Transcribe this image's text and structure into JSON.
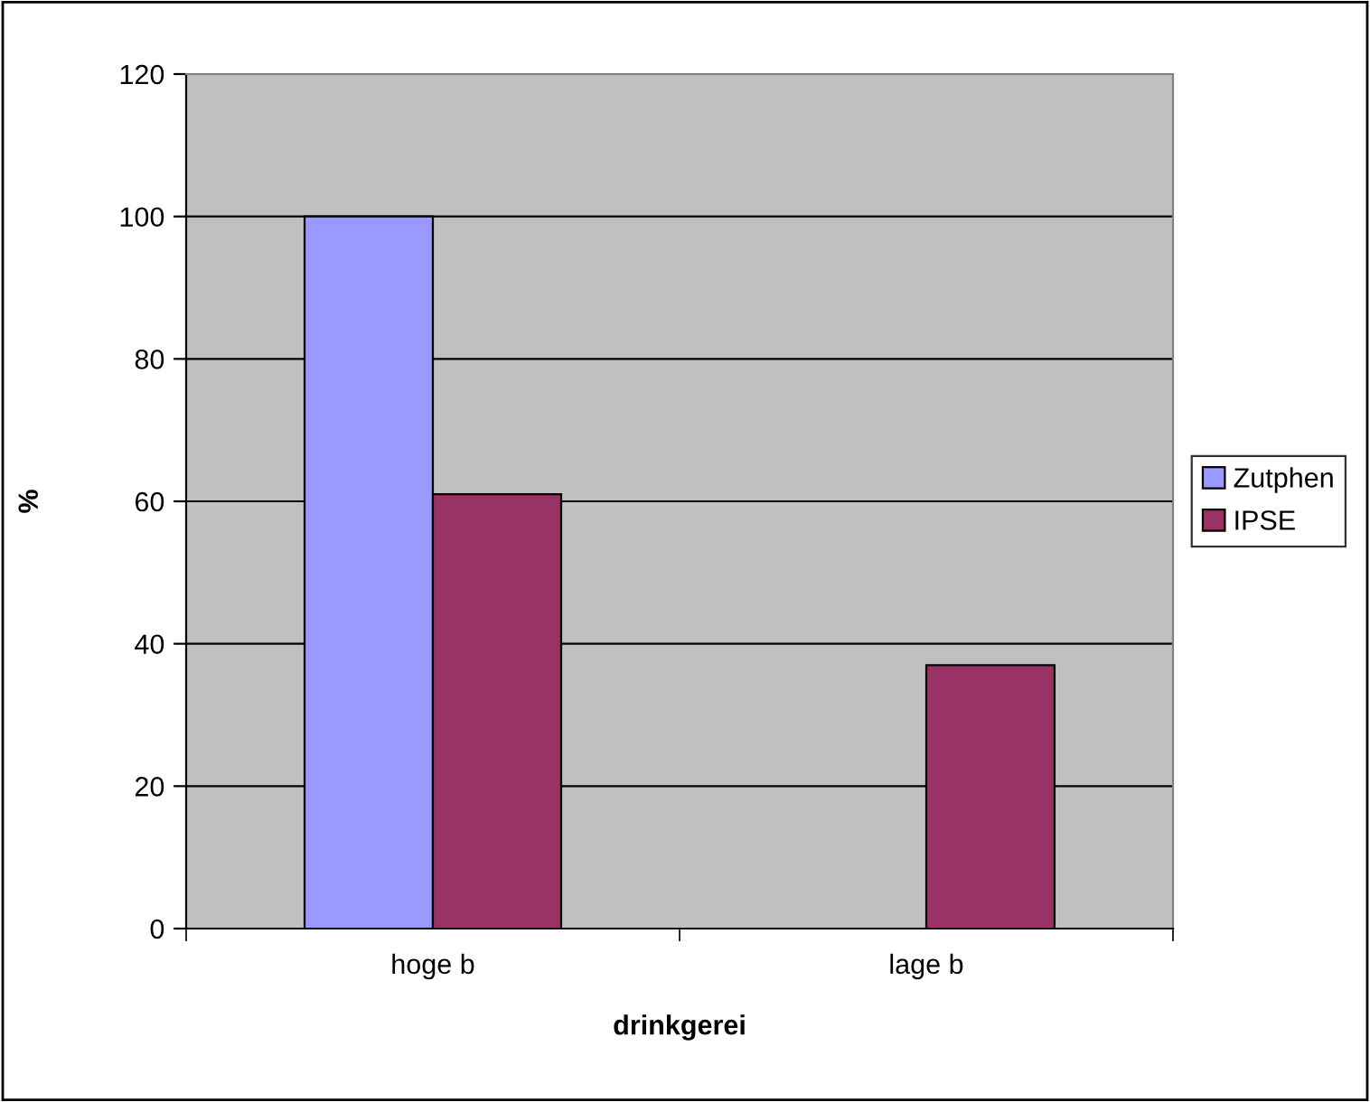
{
  "chart_data": {
    "type": "bar",
    "xlabel": "drinkgerei",
    "ylabel": "%",
    "categories": [
      "hoge b",
      "lage b"
    ],
    "series": [
      {
        "name": "Zutphen",
        "color": "#9999ff",
        "values": [
          100,
          0
        ]
      },
      {
        "name": "IPSE",
        "color": "#993366",
        "values": [
          61,
          37
        ]
      }
    ],
    "ylim": [
      0,
      120
    ],
    "yticks": [
      0,
      20,
      40,
      60,
      80,
      100,
      120
    ],
    "grid": "y",
    "legend": "right"
  }
}
